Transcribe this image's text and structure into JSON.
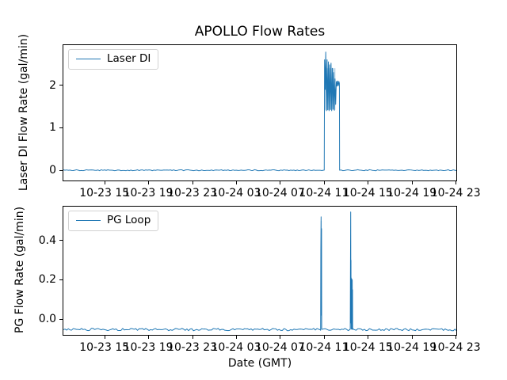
{
  "figure": {
    "title": "APOLLO Flow Rates",
    "xlabel": "Date (GMT)",
    "background": "#ffffff",
    "line_color": "#1f77b4",
    "spine_color": "#000000",
    "text_color": "#000000"
  },
  "chart_data": [
    {
      "type": "line",
      "panel": "top",
      "ylabel": "Laser DI Flow Rate (gal/min)",
      "legend": "Laser DI",
      "legend_position": "upper left",
      "x_unit": "hours since 10-23 00:00 GMT",
      "xlim": [
        11.27,
        47.06
      ],
      "ylim": [
        -0.241,
        2.944
      ],
      "grid": false,
      "xticks": [
        {
          "v": 15,
          "label": "10-23 15"
        },
        {
          "v": 19,
          "label": "10-23 19"
        },
        {
          "v": 23,
          "label": "10-23 23"
        },
        {
          "v": 27,
          "label": "10-24 03"
        },
        {
          "v": 31,
          "label": "10-24 07"
        },
        {
          "v": 35,
          "label": "10-24 11"
        },
        {
          "v": 39,
          "label": "10-24 15"
        },
        {
          "v": 43,
          "label": "10-24 19"
        },
        {
          "v": 47,
          "label": "10-24 23"
        }
      ],
      "yticks": [
        {
          "v": 0,
          "label": "0"
        },
        {
          "v": 1,
          "label": "1"
        },
        {
          "v": 2,
          "label": "2"
        }
      ],
      "series": [
        {
          "name": "Laser DI",
          "baseline": 0.0,
          "burst_summary": "flat 0 until ~10-24 11:05, oscillates 1.4-2.78 until ~10-24 12:25, peak 2.78, then flat 0",
          "segments": [
            {
              "type": "noise",
              "x0": 11.27,
              "x1": 35.03,
              "level": 0.0,
              "amp": 0.012
            },
            {
              "type": "points",
              "pts": [
                [
                  35.06,
                  2.6
                ],
                [
                  35.12,
                  1.9
                ],
                [
                  35.17,
                  2.78
                ],
                [
                  35.23,
                  1.4
                ],
                [
                  35.29,
                  2.6
                ],
                [
                  35.35,
                  1.42
                ],
                [
                  35.41,
                  2.55
                ],
                [
                  35.47,
                  1.4
                ],
                [
                  35.53,
                  2.48
                ],
                [
                  35.59,
                  1.43
                ],
                [
                  35.65,
                  2.52
                ],
                [
                  35.71,
                  1.4
                ],
                [
                  35.77,
                  2.4
                ],
                [
                  35.83,
                  1.44
                ],
                [
                  35.89,
                  2.3
                ],
                [
                  35.95,
                  1.41
                ],
                [
                  36.01,
                  2.15
                ],
                [
                  36.07,
                  1.55
                ],
                [
                  36.13,
                  2.08
                ],
                [
                  36.19,
                  1.98
                ],
                [
                  36.25,
                  2.1
                ],
                [
                  36.31,
                  2.0
                ],
                [
                  36.37,
                  2.08
                ],
                [
                  36.41,
                  2.05
                ]
              ]
            },
            {
              "type": "noise",
              "x0": 36.43,
              "x1": 47.06,
              "level": 0.0,
              "amp": 0.012
            }
          ]
        }
      ],
      "soft_columns": [
        {
          "x0": 35.1,
          "x1": 36.05,
          "y0": 1.42,
          "y1": 2.4,
          "opacity": 0.28
        },
        {
          "x0": 36.1,
          "x1": 36.41,
          "y0": 1.98,
          "y1": 2.1,
          "opacity": 0.45
        }
      ]
    },
    {
      "type": "line",
      "panel": "bottom",
      "ylabel": "PG Flow Rate (gal/min)",
      "legend": "PG Loop",
      "legend_position": "upper left",
      "x_unit": "hours since 10-23 00:00 GMT",
      "xlim": [
        11.27,
        47.06
      ],
      "ylim": [
        -0.08,
        0.572
      ],
      "grid": false,
      "xticks": [
        {
          "v": 15,
          "label": "10-23 15"
        },
        {
          "v": 19,
          "label": "10-23 19"
        },
        {
          "v": 23,
          "label": "10-23 23"
        },
        {
          "v": 27,
          "label": "10-24 03"
        },
        {
          "v": 31,
          "label": "10-24 07"
        },
        {
          "v": 35,
          "label": "10-24 11"
        },
        {
          "v": 39,
          "label": "10-24 15"
        },
        {
          "v": 43,
          "label": "10-24 19"
        },
        {
          "v": 47,
          "label": "10-24 23"
        }
      ],
      "yticks": [
        {
          "v": 0.0,
          "label": "0.0"
        },
        {
          "v": 0.2,
          "label": "0.2"
        },
        {
          "v": 0.4,
          "label": "0.4"
        }
      ],
      "series": [
        {
          "name": "PG Loop",
          "baseline": -0.053,
          "burst_summary": "noisy baseline -0.05; narrow spike to 0.52 at ~10-24 10:50; spike to 0.545 with 0.2 shoulder ~10-24 13:25-13:40",
          "segments": [
            {
              "type": "noise",
              "x0": 11.27,
              "x1": 34.7,
              "level": -0.053,
              "amp": 0.006
            },
            {
              "type": "points",
              "pts": [
                [
                  34.72,
                  0.35
                ],
                [
                  34.745,
                  0.52
                ],
                [
                  34.765,
                  0.02
                ],
                [
                  34.785,
                  0.46
                ],
                [
                  34.8,
                  -0.05
                ]
              ]
            },
            {
              "type": "noise",
              "x0": 34.82,
              "x1": 37.4,
              "level": -0.053,
              "amp": 0.006
            },
            {
              "type": "points",
              "pts": [
                [
                  37.42,
                  0.26
                ],
                [
                  37.44,
                  0.545
                ],
                [
                  37.455,
                  0.12
                ],
                [
                  37.465,
                  0.3
                ],
                [
                  37.475,
                  -0.02
                ],
                [
                  37.49,
                  0.21
                ],
                [
                  37.505,
                  -0.05
                ],
                [
                  37.52,
                  0.205
                ],
                [
                  37.535,
                  -0.048
                ],
                [
                  37.55,
                  0.2
                ],
                [
                  37.565,
                  -0.05
                ],
                [
                  37.58,
                  0.198
                ],
                [
                  37.595,
                  -0.05
                ],
                [
                  37.61,
                  0.15
                ],
                [
                  37.62,
                  -0.053
                ]
              ]
            },
            {
              "type": "noise",
              "x0": 37.64,
              "x1": 47.06,
              "level": -0.053,
              "amp": 0.006
            }
          ]
        }
      ],
      "soft_columns": [
        {
          "x0": 34.71,
          "x1": 34.8,
          "y0": -0.053,
          "y1": 0.5,
          "opacity": 0.3
        },
        {
          "x0": 37.425,
          "x1": 37.47,
          "y0": -0.053,
          "y1": 0.26,
          "opacity": 0.3
        },
        {
          "x0": 37.475,
          "x1": 37.6,
          "y0": -0.053,
          "y1": 0.205,
          "opacity": 0.55
        }
      ]
    }
  ]
}
